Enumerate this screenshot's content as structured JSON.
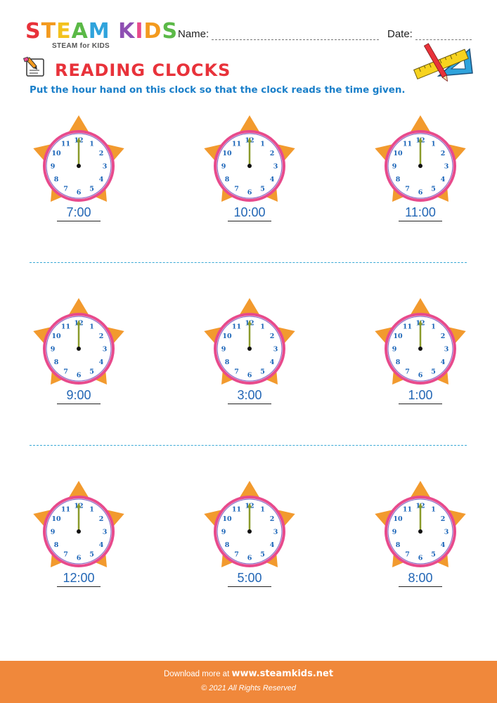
{
  "header": {
    "logo_letters": [
      "S",
      "T",
      "E",
      "A",
      "M",
      " ",
      "K",
      "I",
      "D",
      "S"
    ],
    "logo_colors": [
      "#e8323a",
      "#f39a1e",
      "#f3c21e",
      "#5bb947",
      "#2fa3dc",
      "#ffffff",
      "#8e4fb3",
      "#e84a8c",
      "#f39a1e",
      "#5bb947"
    ],
    "logo_subtitle": "STEAM for KIDS",
    "name_label": "Name:",
    "date_label": "Date:"
  },
  "worksheet": {
    "title": "READING CLOCKS",
    "instruction": "Put the hour hand on this clock so that the clock reads the time given."
  },
  "clock_face": {
    "numbers": [
      "12",
      "1",
      "2",
      "3",
      "4",
      "5",
      "6",
      "7",
      "8",
      "9",
      "10",
      "11"
    ],
    "star_color": "#f29a2e",
    "ring_color": "#e84a8c",
    "ring_inner_color": "#8f6fc6",
    "number_color": "#1b65b8",
    "hand_color": "#8a9a2a"
  },
  "clocks": [
    {
      "time": "7:00"
    },
    {
      "time": "10:00"
    },
    {
      "time": "11:00"
    },
    {
      "time": "9:00"
    },
    {
      "time": "3:00"
    },
    {
      "time": "1:00"
    },
    {
      "time": "12:00"
    },
    {
      "time": "5:00"
    },
    {
      "time": "8:00"
    }
  ],
  "footer": {
    "download_text": "Download more at",
    "site": "www.steamkids.net",
    "copyright": "© 2021 All Rights Reserved",
    "color": "#f0883b"
  }
}
